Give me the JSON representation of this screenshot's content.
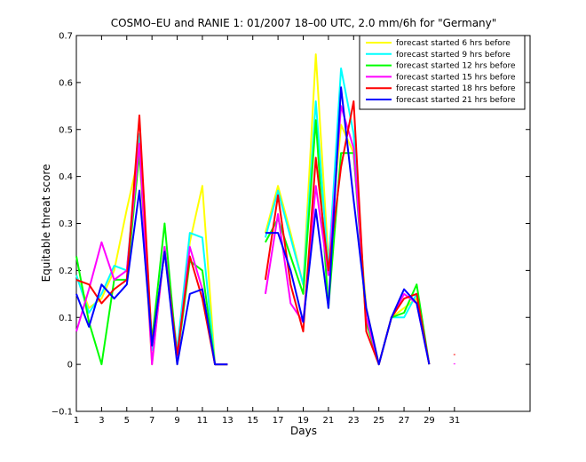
{
  "chart_data": {
    "type": "line",
    "title": "COSMO–EU and RANIE 1: 01/2007 18–00 UTC, 2.0 mm/6h for \"Germany\"",
    "xlabel": "Days",
    "ylabel": "Equitable threat score",
    "xlim": [
      1,
      37
    ],
    "ylim": [
      -0.1,
      0.7
    ],
    "xticks": [
      1,
      3,
      5,
      7,
      9,
      11,
      13,
      15,
      17,
      19,
      21,
      23,
      25,
      27,
      29,
      31
    ],
    "yticks": [
      -0.1,
      0,
      0.1,
      0.2,
      0.3,
      0.4,
      0.5,
      0.6,
      0.7
    ],
    "ytick_labels": [
      "−0.1",
      "0",
      "0.1",
      "0.2",
      "0.3",
      "0.4",
      "0.5",
      "0.6",
      "0.7"
    ],
    "grid": false,
    "legend_position": "top-right",
    "x": [
      1,
      2,
      3,
      4,
      5,
      6,
      7,
      8,
      9,
      10,
      11,
      12,
      13,
      14,
      15,
      16,
      17,
      18,
      19,
      20,
      21,
      22,
      23,
      24,
      25,
      26,
      27,
      28,
      29,
      30,
      31
    ],
    "series": [
      {
        "name": "forecast started 6 hrs before",
        "color": "#ffff00",
        "values": [
          0.19,
          0.12,
          0.14,
          0.2,
          0.33,
          0.45,
          0.0,
          0.25,
          0.0,
          0.26,
          0.38,
          0.0,
          0.0,
          null,
          null,
          0.28,
          0.38,
          0.28,
          0.17,
          0.66,
          0.22,
          0.51,
          0.45,
          0.12,
          0.0,
          0.1,
          0.12,
          0.14,
          0.0,
          null,
          null
        ]
      },
      {
        "name": "forecast started 9 hrs before",
        "color": "#00ffff",
        "values": [
          0.19,
          0.11,
          0.15,
          0.21,
          0.2,
          0.49,
          0.03,
          0.25,
          0.03,
          0.28,
          0.27,
          0.0,
          0.0,
          null,
          null,
          0.27,
          0.37,
          0.27,
          0.17,
          0.56,
          0.2,
          0.63,
          0.49,
          0.1,
          0.0,
          0.1,
          0.1,
          0.15,
          0.0,
          null,
          null
        ]
      },
      {
        "name": "forecast started 12 hrs before",
        "color": "#00ff00",
        "values": [
          0.23,
          0.09,
          0.0,
          0.18,
          0.18,
          0.45,
          0.05,
          0.3,
          0.01,
          0.22,
          0.2,
          0.0,
          0.0,
          null,
          null,
          0.26,
          0.31,
          0.23,
          0.15,
          0.52,
          0.12,
          0.45,
          0.45,
          0.09,
          0.0,
          0.1,
          0.11,
          0.17,
          0.0,
          null,
          null
        ]
      },
      {
        "name": "forecast started 15 hrs before",
        "color": "#ff00ff",
        "values": [
          0.07,
          0.16,
          0.26,
          0.18,
          0.2,
          0.47,
          0.0,
          0.25,
          0.01,
          0.25,
          0.16,
          0.0,
          0.0,
          null,
          null,
          0.15,
          0.32,
          0.13,
          0.09,
          0.38,
          0.19,
          0.55,
          0.46,
          0.1,
          0.0,
          0.1,
          0.15,
          0.13,
          0.0,
          null,
          0.0
        ]
      },
      {
        "name": "forecast started 18 hrs before",
        "color": "#ff0000",
        "values": [
          0.18,
          0.17,
          0.13,
          0.16,
          0.18,
          0.53,
          0.04,
          0.24,
          0.02,
          0.23,
          0.14,
          0.0,
          0.0,
          null,
          null,
          0.18,
          0.36,
          0.17,
          0.07,
          0.44,
          0.2,
          0.42,
          0.56,
          0.07,
          0.0,
          0.1,
          0.14,
          0.15,
          0.0,
          null,
          0.02
        ]
      },
      {
        "name": "forecast started 21 hrs before",
        "color": "#0000ff",
        "values": [
          0.15,
          0.08,
          0.17,
          0.14,
          0.17,
          0.37,
          0.04,
          0.24,
          0.0,
          0.15,
          0.16,
          0.0,
          0.0,
          null,
          null,
          0.28,
          0.28,
          0.2,
          0.09,
          0.33,
          0.12,
          0.59,
          0.35,
          0.12,
          0.0,
          0.1,
          0.16,
          0.13,
          0.0,
          null,
          null
        ]
      }
    ]
  }
}
